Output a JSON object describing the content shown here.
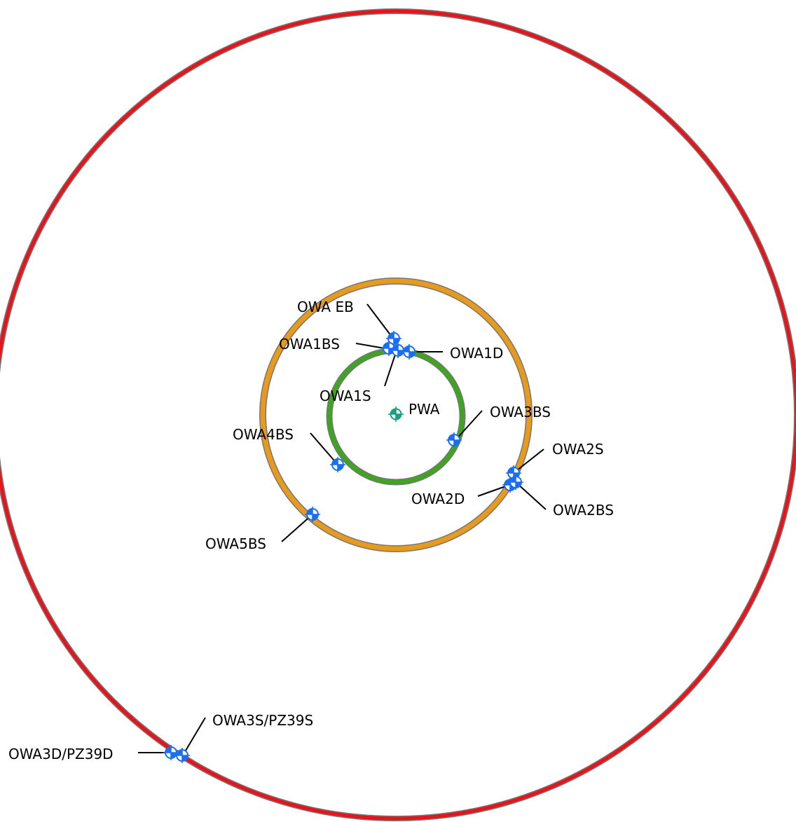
{
  "map": {
    "rings": [
      {
        "id": "outer",
        "color": "#e8141c"
      },
      {
        "id": "middle",
        "color": "#e89a1c"
      },
      {
        "id": "inner",
        "color": "#3ea51f"
      }
    ],
    "pumping_well": {
      "label": "PWA",
      "color": "#1a9e80"
    },
    "observation_well_color": "#1a6ff0",
    "wells": [
      {
        "id": "owa-eb",
        "label": "OWA EB"
      },
      {
        "id": "owa1bs",
        "label": "OWA1BS"
      },
      {
        "id": "owa1d",
        "label": "OWA1D"
      },
      {
        "id": "owa1s",
        "label": "OWA1S"
      },
      {
        "id": "owa3bs",
        "label": "OWA3BS"
      },
      {
        "id": "owa4bs",
        "label": "OWA4BS"
      },
      {
        "id": "owa2s",
        "label": "OWA2S"
      },
      {
        "id": "owa2d",
        "label": "OWA2D"
      },
      {
        "id": "owa2bs",
        "label": "OWA2BS"
      },
      {
        "id": "owa5bs",
        "label": "OWA5BS"
      },
      {
        "id": "owa3s-pz39s",
        "label": "OWA3S/PZ39S"
      },
      {
        "id": "owa3d-pz39d",
        "label": "OWA3D/PZ39D"
      }
    ]
  }
}
